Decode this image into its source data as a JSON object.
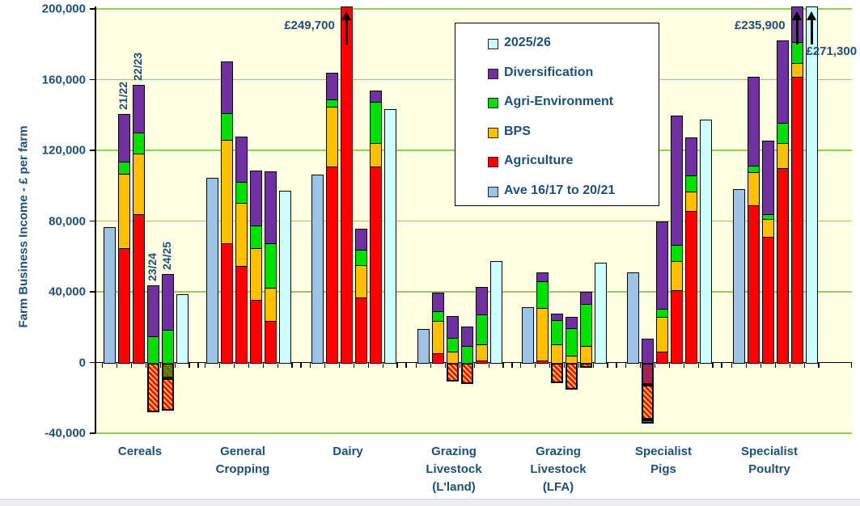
{
  "y_axis": {
    "title": "Farm Business Income - £ per farm",
    "ticks": [
      {
        "label": "200,000",
        "value": 200000
      },
      {
        "label": "160,000",
        "value": 160000
      },
      {
        "label": "120,000",
        "value": 120000
      },
      {
        "label": "80,000",
        "value": 80000
      },
      {
        "label": "40,000",
        "value": 40000
      },
      {
        "label": "0",
        "value": 0
      },
      {
        "label": "-40,000",
        "value": -40000
      }
    ],
    "min": -40000,
    "max": 200000,
    "grid_on": true
  },
  "colors": {
    "agriculture": "#FF0000",
    "bps": "#FFC000",
    "agri_environment": "#00DF00",
    "diversification": "#7030A0",
    "ave": "#9DC3E6",
    "fy26": "#CCFFFF",
    "axis_text": "#1F4E79",
    "gridline": "#92D050",
    "plot_bg": "#FFFFE1"
  },
  "legend": {
    "position": "top-center-overlay",
    "items": [
      {
        "label": "2025/26",
        "color_key": "fy26"
      },
      {
        "label": "Diversification",
        "color_key": "diversification"
      },
      {
        "label": "Agri-Environment",
        "color_key": "agri_environment"
      },
      {
        "label": "BPS",
        "color_key": "bps"
      },
      {
        "label": "Agriculture",
        "color_key": "agriculture"
      },
      {
        "label": "Ave 16/17 to 20/21",
        "color_key": "ave"
      }
    ]
  },
  "annotations": [
    {
      "text": "£249,700",
      "group": 2,
      "bar": 2,
      "side": "left"
    },
    {
      "text": "£235,900",
      "group": 6,
      "bar": 4,
      "side": "left"
    },
    {
      "text": "£271,300",
      "group": 6,
      "bar": 5,
      "side": "right-below"
    }
  ],
  "chart_data": {
    "type": "bar",
    "subtype": "stacked-with-negatives",
    "title": "",
    "xlabel": "",
    "ylabel": "Farm Business Income - £ per farm",
    "ylim": [
      -40000,
      200000
    ],
    "series_order": [
      "agriculture",
      "bps",
      "agri_environment",
      "diversification"
    ],
    "bar_years": [
      "Ave 16/17 to 20/21",
      "21/22",
      "22/23",
      "23/24",
      "24/25",
      "2025/26"
    ],
    "groups": [
      {
        "category": "Cereals",
        "label_lines": [
          "Cereals"
        ],
        "bars": [
          {
            "type": "ave",
            "value": 76500
          },
          {
            "type": "stack",
            "year": "21/22",
            "show_year": true,
            "pos": [
              [
                "agriculture",
                64500
              ],
              [
                "bps",
                42300
              ],
              [
                "agri_environment",
                6900
              ],
              [
                "diversification",
                27100
              ]
            ]
          },
          {
            "type": "stack",
            "year": "22/23",
            "show_year": true,
            "pos": [
              [
                "agriculture",
                83900
              ],
              [
                "bps",
                34400
              ],
              [
                "agri_environment",
                11900
              ],
              [
                "diversification",
                27000
              ]
            ]
          },
          {
            "type": "stack",
            "year": "23/24",
            "show_year": true,
            "pos": [
              [
                "agri_environment",
                15000
              ],
              [
                "diversification",
                28500
              ]
            ],
            "neg": [
              [
                "agriculture_neg",
                28000
              ]
            ]
          },
          {
            "type": "stack",
            "year": "24/25",
            "show_year": true,
            "pos": [
              [
                "agri_environment",
                18300
              ],
              [
                "diversification",
                31700
              ]
            ],
            "neg": [
              [
                "agri_environment_neg",
                9000
              ],
              [
                "agriculture_neg",
                18300
              ]
            ]
          },
          {
            "type": "fy26",
            "value": 38600
          }
        ]
      },
      {
        "category": "General Cropping",
        "label_lines": [
          "General",
          "Cropping"
        ],
        "bars": [
          {
            "type": "ave",
            "value": 104500
          },
          {
            "type": "stack",
            "year": "21/22",
            "pos": [
              [
                "agriculture",
                67500
              ],
              [
                "bps",
                58500
              ],
              [
                "agri_environment",
                15000
              ],
              [
                "diversification",
                29500
              ]
            ]
          },
          {
            "type": "stack",
            "year": "22/23",
            "pos": [
              [
                "agriculture",
                54600
              ],
              [
                "bps",
                35800
              ],
              [
                "agri_environment",
                11800
              ],
              [
                "diversification",
                25600
              ]
            ]
          },
          {
            "type": "stack",
            "year": "23/24",
            "pos": [
              [
                "agriculture",
                35500
              ],
              [
                "bps",
                29000
              ],
              [
                "agri_environment",
                13000
              ],
              [
                "diversification",
                31300
              ]
            ]
          },
          {
            "type": "stack",
            "year": "24/25",
            "pos": [
              [
                "agriculture",
                23600
              ],
              [
                "bps",
                18800
              ],
              [
                "agri_environment",
                24900
              ],
              [
                "diversification",
                41000
              ]
            ]
          },
          {
            "type": "fy26",
            "value": 97300
          }
        ]
      },
      {
        "category": "Dairy",
        "label_lines": [
          "Dairy"
        ],
        "bars": [
          {
            "type": "ave",
            "value": 106500
          },
          {
            "type": "stack",
            "year": "21/22",
            "pos": [
              [
                "agriculture",
                111000
              ],
              [
                "bps",
                33600
              ],
              [
                "agri_environment",
                4400
              ],
              [
                "diversification",
                15000
              ]
            ]
          },
          {
            "type": "stack",
            "year": "22/23",
            "clipped": true,
            "total": 249700,
            "pos": [
              [
                "agriculture",
                249700
              ]
            ]
          },
          {
            "type": "stack",
            "year": "23/24",
            "pos": [
              [
                "agriculture",
                36600
              ],
              [
                "bps",
                18400
              ],
              [
                "agri_environment",
                9000
              ],
              [
                "diversification",
                11500
              ]
            ]
          },
          {
            "type": "stack",
            "year": "24/25",
            "pos": [
              [
                "agriculture",
                111000
              ],
              [
                "bps",
                13300
              ],
              [
                "agri_environment",
                23100
              ],
              [
                "diversification",
                6600
              ]
            ]
          },
          {
            "type": "fy26",
            "value": 143300
          }
        ]
      },
      {
        "category": "Grazing Livestock (L'land)",
        "label_lines": [
          "Grazing",
          "Livestock",
          "(L'land)"
        ],
        "bars": [
          {
            "type": "ave",
            "value": 19100
          },
          {
            "type": "stack",
            "year": "21/22",
            "pos": [
              [
                "agriculture",
                5200
              ],
              [
                "bps",
                18300
              ],
              [
                "agri_environment",
                5400
              ],
              [
                "diversification",
                10800
              ]
            ]
          },
          {
            "type": "stack",
            "year": "22/23",
            "pos": [
              [
                "bps",
                6400
              ],
              [
                "agri_environment",
                7600
              ],
              [
                "diversification",
                12300
              ]
            ],
            "neg": [
              [
                "agriculture_neg",
                10800
              ]
            ]
          },
          {
            "type": "stack",
            "year": "23/24",
            "pos": [
              [
                "agri_environment",
                9500
              ],
              [
                "diversification",
                10700
              ]
            ],
            "neg": [
              [
                "agriculture_neg",
                12200
              ]
            ]
          },
          {
            "type": "stack",
            "year": "24/25",
            "pos": [
              [
                "agriculture",
                1000
              ],
              [
                "bps",
                9200
              ],
              [
                "agri_environment",
                17100
              ],
              [
                "diversification",
                15300
              ]
            ]
          },
          {
            "type": "fy26",
            "value": 57500
          }
        ]
      },
      {
        "category": "Grazing Livestock (LFA)",
        "label_lines": [
          "Grazing",
          "Livestock",
          "(LFA)"
        ],
        "bars": [
          {
            "type": "ave",
            "value": 31500
          },
          {
            "type": "stack",
            "year": "21/22",
            "pos": [
              [
                "agriculture",
                1000
              ],
              [
                "bps",
                30000
              ],
              [
                "agri_environment",
                15000
              ],
              [
                "diversification",
                5000
              ]
            ]
          },
          {
            "type": "stack",
            "year": "22/23",
            "pos": [
              [
                "bps",
                10200
              ],
              [
                "agri_environment",
                13800
              ],
              [
                "diversification",
                3500
              ]
            ],
            "neg": [
              [
                "agriculture_neg",
                11800
              ]
            ]
          },
          {
            "type": "stack",
            "year": "23/24",
            "pos": [
              [
                "bps",
                3800
              ],
              [
                "agri_environment",
                15600
              ],
              [
                "diversification",
                6600
              ]
            ],
            "neg": [
              [
                "agriculture_neg",
                15400
              ]
            ]
          },
          {
            "type": "stack",
            "year": "24/25",
            "pos": [
              [
                "bps",
                9200
              ],
              [
                "agri_environment",
                23900
              ],
              [
                "diversification",
                6900
              ]
            ],
            "neg": [
              [
                "agriculture_neg",
                3100
              ]
            ]
          },
          {
            "type": "fy26",
            "value": 56400
          }
        ]
      },
      {
        "category": "Specialist Pigs",
        "label_lines": [
          "Specialist",
          "Pigs"
        ],
        "bars": [
          {
            "type": "ave",
            "value": 51000
          },
          {
            "type": "stack",
            "year": "21/22",
            "pos": [
              [
                "diversification",
                13600
              ]
            ],
            "neg": [
              [
                "diversification_neg",
                12700
              ],
              [
                "agriculture_neg",
                19300
              ],
              [
                "agri_environment_neg",
                2500
              ]
            ]
          },
          {
            "type": "stack",
            "year": "22/23",
            "pos": [
              [
                "agriculture",
                6400
              ],
              [
                "bps",
                19400
              ],
              [
                "agri_environment",
                4700
              ],
              [
                "diversification",
                49200
              ]
            ]
          },
          {
            "type": "stack",
            "year": "23/24",
            "pos": [
              [
                "agriculture",
                41100
              ],
              [
                "bps",
                16400
              ],
              [
                "agri_environment",
                8800
              ],
              [
                "diversification",
                73200
              ]
            ]
          },
          {
            "type": "stack",
            "year": "24/25",
            "pos": [
              [
                "agriculture",
                85800
              ],
              [
                "bps",
                10700
              ],
              [
                "agri_environment",
                9500
              ],
              [
                "diversification",
                21300
              ]
            ]
          },
          {
            "type": "fy26",
            "value": 137300
          }
        ]
      },
      {
        "category": "Specialist Poultry",
        "label_lines": [
          "Specialist",
          "Poultry"
        ],
        "bars": [
          {
            "type": "ave",
            "value": 98000
          },
          {
            "type": "stack",
            "year": "21/22",
            "pos": [
              [
                "agriculture",
                89000
              ],
              [
                "bps",
                18500
              ],
              [
                "agri_environment",
                4000
              ],
              [
                "diversification",
                50000
              ]
            ]
          },
          {
            "type": "stack",
            "year": "22/23",
            "pos": [
              [
                "agriculture",
                71000
              ],
              [
                "bps",
                10000
              ],
              [
                "agri_environment",
                3000
              ],
              [
                "diversification",
                41500
              ]
            ]
          },
          {
            "type": "stack",
            "year": "23/24",
            "pos": [
              [
                "agriculture",
                110000
              ],
              [
                "bps",
                14000
              ],
              [
                "agri_environment",
                11400
              ],
              [
                "diversification",
                46600
              ]
            ]
          },
          {
            "type": "stack",
            "year": "24/25",
            "clipped": true,
            "total": 235900,
            "pos": [
              [
                "agriculture",
                161400
              ],
              [
                "bps",
                8100
              ],
              [
                "agri_environment",
                11800
              ],
              [
                "diversification",
                54600
              ]
            ]
          },
          {
            "type": "fy26",
            "value": 271300,
            "clipped": true
          }
        ]
      }
    ]
  }
}
